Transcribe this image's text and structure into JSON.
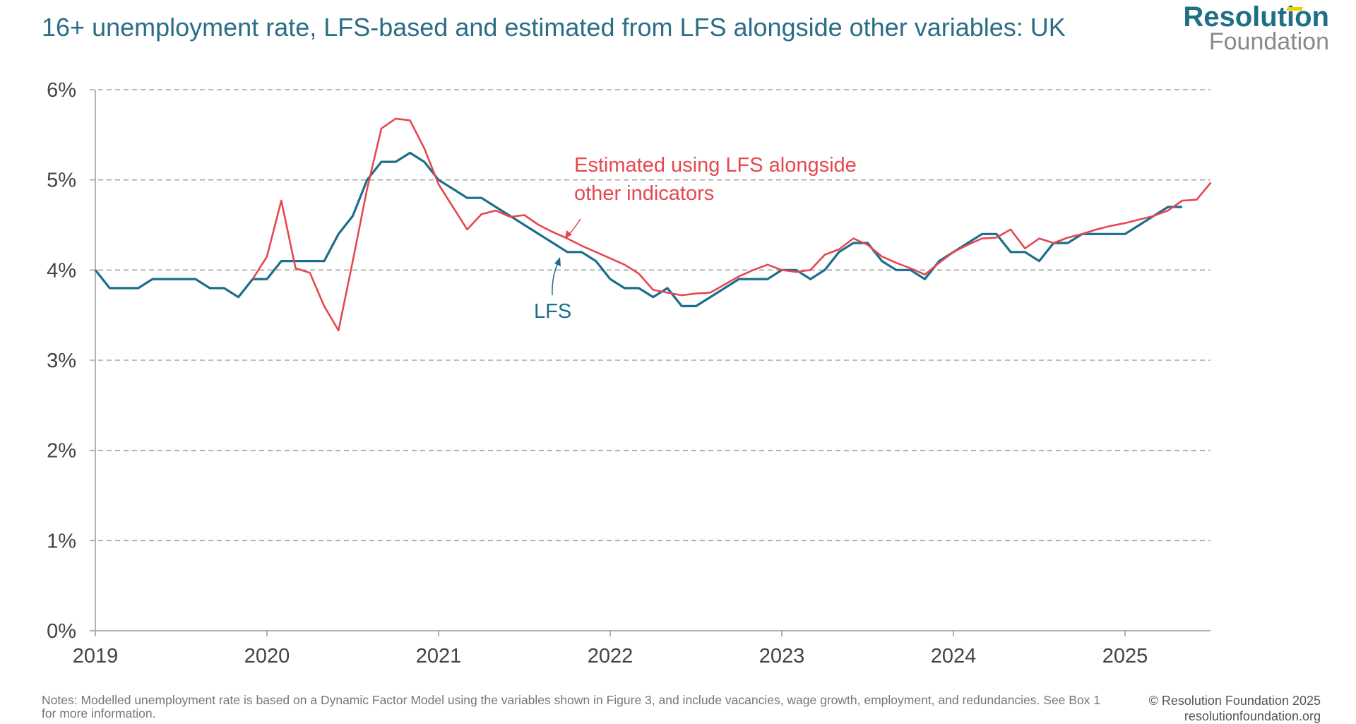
{
  "title": "16+ unemployment rate, LFS-based and estimated from LFS alongside other variables: UK",
  "logo": {
    "line1": "Resolution",
    "line2": "Foundation"
  },
  "notes": "Notes: Modelled unemployment rate is based on a Dynamic Factor Model using the variables shown in Figure 3, and include vacancies, wage growth, employment, and redundancies.  See Box 1 for more information.",
  "copyright": "© Resolution Foundation 2025",
  "website": "resolutionfoundation.org",
  "colors": {
    "lfs": "#1b6e8c",
    "estimated": "#e5484f",
    "title": "#2a6d86",
    "grid": "#a6a6a6"
  },
  "chart_data": {
    "type": "line",
    "title": "16+ unemployment rate, LFS-based and estimated from LFS alongside other variables: UK",
    "xlabel": "",
    "ylabel": "",
    "xlim": [
      "2019-01",
      "2025-07"
    ],
    "ylim": [
      0,
      6
    ],
    "y_ticks": [
      "0%",
      "1%",
      "2%",
      "3%",
      "4%",
      "5%",
      "6%"
    ],
    "x_ticks": [
      "2019",
      "2020",
      "2021",
      "2022",
      "2023",
      "2024",
      "2025"
    ],
    "grid": "horizontal dashed",
    "series": [
      {
        "name": "LFS",
        "start": "2019-01",
        "values": [
          4.0,
          3.8,
          3.8,
          3.8,
          3.9,
          3.9,
          3.9,
          3.9,
          3.8,
          3.8,
          3.7,
          3.9,
          3.9,
          4.1,
          4.1,
          4.1,
          4.1,
          4.4,
          4.6,
          5.0,
          5.2,
          5.2,
          5.3,
          5.2,
          5.0,
          4.9,
          4.8,
          4.8,
          4.7,
          4.6,
          4.5,
          4.4,
          4.3,
          4.2,
          4.2,
          4.1,
          3.9,
          3.8,
          3.8,
          3.7,
          3.8,
          3.6,
          3.6,
          3.7,
          3.8,
          3.9,
          3.9,
          3.9,
          4.0,
          4.0,
          3.9,
          4.0,
          4.2,
          4.3,
          4.3,
          4.1,
          4.0,
          4.0,
          3.9,
          4.1,
          4.2,
          4.3,
          4.4,
          4.4,
          4.2,
          4.2,
          4.1,
          4.3,
          4.3,
          4.4,
          4.4,
          4.4,
          4.4,
          4.5,
          4.6,
          4.7,
          4.7
        ]
      },
      {
        "name": "Estimated using LFS alongside other indicators",
        "start": "2019-12",
        "values": [
          3.9,
          4.15,
          4.77,
          4.02,
          3.97,
          3.6,
          3.33,
          4.1,
          4.9,
          5.57,
          5.68,
          5.66,
          5.35,
          4.95,
          4.7,
          4.45,
          4.62,
          4.66,
          4.59,
          4.61,
          4.5,
          4.42,
          4.35,
          4.27,
          4.2,
          4.13,
          4.06,
          3.96,
          3.78,
          3.75,
          3.72,
          3.74,
          3.75,
          3.84,
          3.93,
          4.0,
          4.06,
          4.0,
          3.98,
          4.0,
          4.17,
          4.23,
          4.35,
          4.28,
          4.15,
          4.08,
          4.02,
          3.95,
          4.08,
          4.2,
          4.28,
          4.35,
          4.36,
          4.45,
          4.24,
          4.35,
          4.3,
          4.36,
          4.4,
          4.45,
          4.49,
          4.52,
          4.56,
          4.6,
          4.66,
          4.77,
          4.78,
          4.97
        ]
      }
    ],
    "annotations": [
      {
        "text_line1": "Estimated using LFS alongside",
        "text_line2": "other indicators"
      },
      {
        "text": "LFS"
      }
    ]
  }
}
